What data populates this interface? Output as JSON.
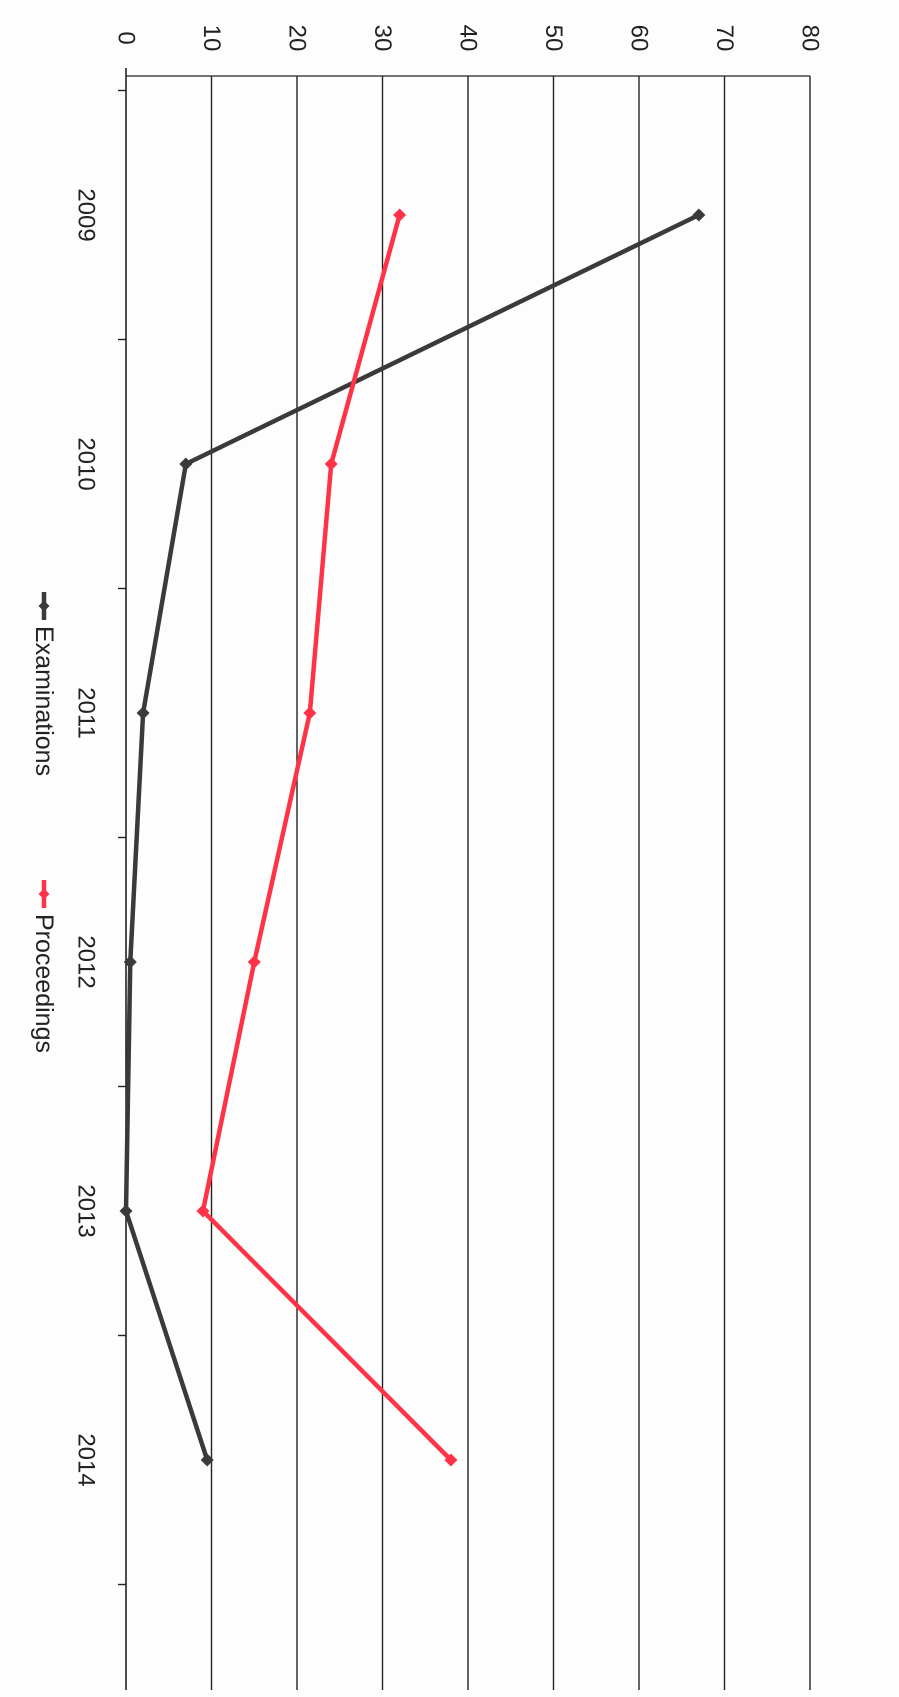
{
  "chart_data": {
    "type": "line",
    "orientation": "rotated-90-clockwise",
    "categories": [
      "2009",
      "2010",
      "2011",
      "2012",
      "2013",
      "2014"
    ],
    "series": [
      {
        "name": "Examinations",
        "color": "#3a3a3a",
        "marker": "diamond",
        "values": [
          67,
          7,
          2,
          0.5,
          0,
          9.5
        ]
      },
      {
        "name": "Proceedings",
        "color": "#ff3347",
        "marker": "diamond",
        "values": [
          32,
          24,
          21.5,
          15,
          9,
          38
        ]
      }
    ],
    "ylim": [
      0,
      80
    ],
    "yticks": [
      "0",
      "10",
      "20",
      "30",
      "40",
      "50",
      "60",
      "70",
      "80"
    ],
    "grid": true,
    "legend_position": "bottom",
    "title": "",
    "xlabel": "",
    "ylabel": ""
  },
  "colors": {
    "background": "#fdfdfd",
    "gridline": "#222222",
    "axis": "#222222"
  }
}
